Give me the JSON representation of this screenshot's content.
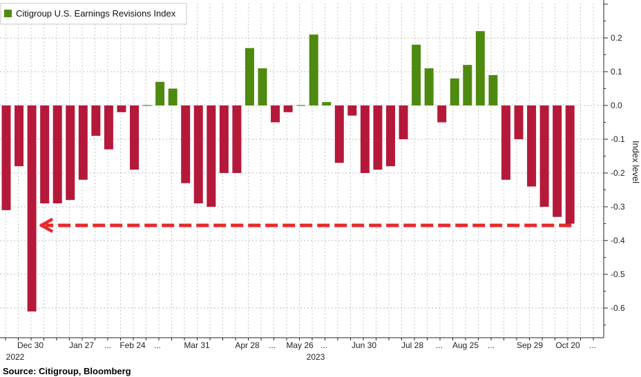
{
  "chart_data": {
    "type": "bar",
    "title": "",
    "legend": {
      "label": "Citigroup U.S. Earnings Revisions Index",
      "position": "top-left",
      "color": "#4f8a10"
    },
    "ylabel": "Index level",
    "xlabel": "",
    "ylim": [
      -0.65,
      0.3
    ],
    "yticks": [
      "0.2",
      "0.1",
      "0.0",
      "-0.1",
      "-0.2",
      "-0.3",
      "-0.4",
      "-0.5",
      "-0.6"
    ],
    "ytick_values": [
      0.2,
      0.1,
      0.0,
      -0.1,
      -0.2,
      -0.3,
      -0.4,
      -0.5,
      -0.6
    ],
    "grid": true,
    "colors": {
      "positive": "#4f8a10",
      "negative": "#b5193a",
      "arrow": "#e8282b"
    },
    "x_tick_labels": [
      "Dec 30",
      "Jan 27",
      "...",
      "Feb 24",
      "...",
      "Mar 31",
      "Apr 28",
      "...",
      "May 26",
      "...",
      "Jun 30",
      "Jul 28",
      "...",
      "Aug 25",
      "...",
      "Sep 29",
      "Oct 20",
      "..."
    ],
    "year_labels": [
      "2022",
      "2023"
    ],
    "values": [
      -0.31,
      -0.18,
      -0.61,
      -0.29,
      -0.29,
      -0.28,
      -0.22,
      -0.09,
      -0.13,
      -0.02,
      -0.19,
      0.0,
      0.07,
      0.05,
      -0.23,
      -0.29,
      -0.3,
      -0.2,
      -0.2,
      0.17,
      0.11,
      -0.05,
      -0.02,
      0.0,
      0.21,
      0.01,
      -0.17,
      -0.03,
      -0.2,
      -0.19,
      -0.18,
      -0.1,
      0.18,
      0.11,
      -0.05,
      0.08,
      0.12,
      0.22,
      0.09,
      -0.22,
      -0.1,
      -0.24,
      -0.3,
      -0.33,
      -0.35
    ],
    "annotation": {
      "type": "dashed-arrow",
      "from_index": 44,
      "to_index": 2,
      "level": -0.355
    }
  },
  "source": "Source: Citigroup, Bloomberg"
}
